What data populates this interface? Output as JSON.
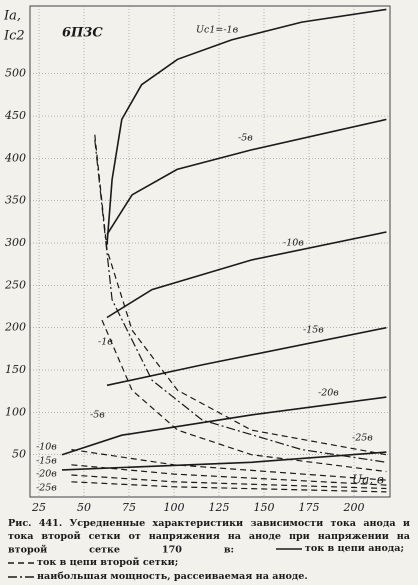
{
  "chart_data": {
    "type": "line",
    "title": "6П3С",
    "ylabel": [
      "Ia,",
      "Ic2"
    ],
    "xlabel": "Ua, в",
    "xlim": [
      20,
      220
    ],
    "ylim": [
      0,
      580
    ],
    "xticks": [
      25,
      50,
      75,
      100,
      125,
      150,
      175,
      200
    ],
    "yticks": [
      50,
      100,
      150,
      200,
      250,
      300,
      350,
      400,
      450,
      500
    ],
    "grid": true,
    "series": [
      {
        "name": "Uc1=-1в",
        "style": "solid",
        "color": "#1a1a1a",
        "x": [
          62.8,
          65.6,
          71,
          82,
          102,
          132,
          171,
          218
        ],
        "values": [
          298,
          375,
          446,
          487,
          517,
          540,
          561,
          576
        ]
      },
      {
        "name": "-5в",
        "style": "solid",
        "color": "#1a1a1a",
        "x": [
          62.8,
          76.7,
          101.7,
          143,
          218
        ],
        "values": [
          310,
          357,
          387,
          410,
          446
        ]
      },
      {
        "name": "-10в",
        "style": "solid",
        "color": "#1a1a1a",
        "x": [
          62.8,
          87.8,
          143,
          218
        ],
        "values": [
          212,
          245,
          280,
          313
        ]
      },
      {
        "name": "-15в",
        "style": "solid",
        "color": "#1a1a1a",
        "x": [
          62.8,
          115.6,
          218
        ],
        "values": [
          132,
          156,
          200
        ]
      },
      {
        "name": "-20в",
        "style": "solid",
        "color": "#1a1a1a",
        "x": [
          37.8,
          71,
          143,
          218
        ],
        "values": [
          50,
          73,
          97,
          118
        ]
      },
      {
        "name": "-25в",
        "style": "solid",
        "color": "#1a1a1a",
        "x": [
          37.8,
          143,
          218
        ],
        "values": [
          32,
          41,
          53
        ]
      },
      {
        "name": "-1в",
        "style": "dashed",
        "color": "#1a1a1a",
        "x": [
          56,
          62.8,
          76.7,
          102,
          143,
          218
        ],
        "values": [
          428,
          292,
          197,
          126,
          79,
          50
        ]
      },
      {
        "name": "-5в",
        "style": "dashed",
        "color": "#1a1a1a",
        "x": [
          60,
          76.7,
          102,
          143,
          218
        ],
        "values": [
          209,
          126,
          79,
          50,
          30
        ]
      },
      {
        "name": "-10в",
        "style": "dashed",
        "color": "#1a1a1a",
        "x": [
          43,
          100,
          218
        ],
        "values": [
          56,
          38,
          20
        ]
      },
      {
        "name": "-15в",
        "style": "dashed",
        "color": "#1a1a1a",
        "x": [
          43,
          100,
          218
        ],
        "values": [
          38,
          27,
          14
        ]
      },
      {
        "name": "-20в",
        "style": "dashed",
        "color": "#1a1a1a",
        "x": [
          43,
          100,
          218
        ],
        "values": [
          26,
          18,
          10
        ]
      },
      {
        "name": "-25в",
        "style": "dashed",
        "color": "#1a1a1a",
        "x": [
          43,
          100,
          218
        ],
        "values": [
          18,
          12,
          6
        ]
      },
      {
        "name": "наибольшая мощность, рассеиваемая на аноде.",
        "style": "dashdot",
        "color": "#1a1a1a",
        "x": [
          56,
          65.6,
          87.8,
          115.6,
          171,
          218
        ],
        "values": [
          422,
          233,
          138,
          91,
          56,
          41
        ]
      }
    ],
    "caption": "Рис. 441. Усредненные характеристики зависимости тока анода и тока второй сетки от напряжения на аноде при напряжении на второй сетке 170 в:",
    "legend_notes": [
      {
        "style": "solid",
        "label": "ток в цепи анода;"
      },
      {
        "style": "dashed",
        "label": "ток в цепи второй сетки;"
      },
      {
        "style": "dashdot",
        "label": "наибольшая мощность, рассеиваемая на аноде."
      }
    ]
  }
}
